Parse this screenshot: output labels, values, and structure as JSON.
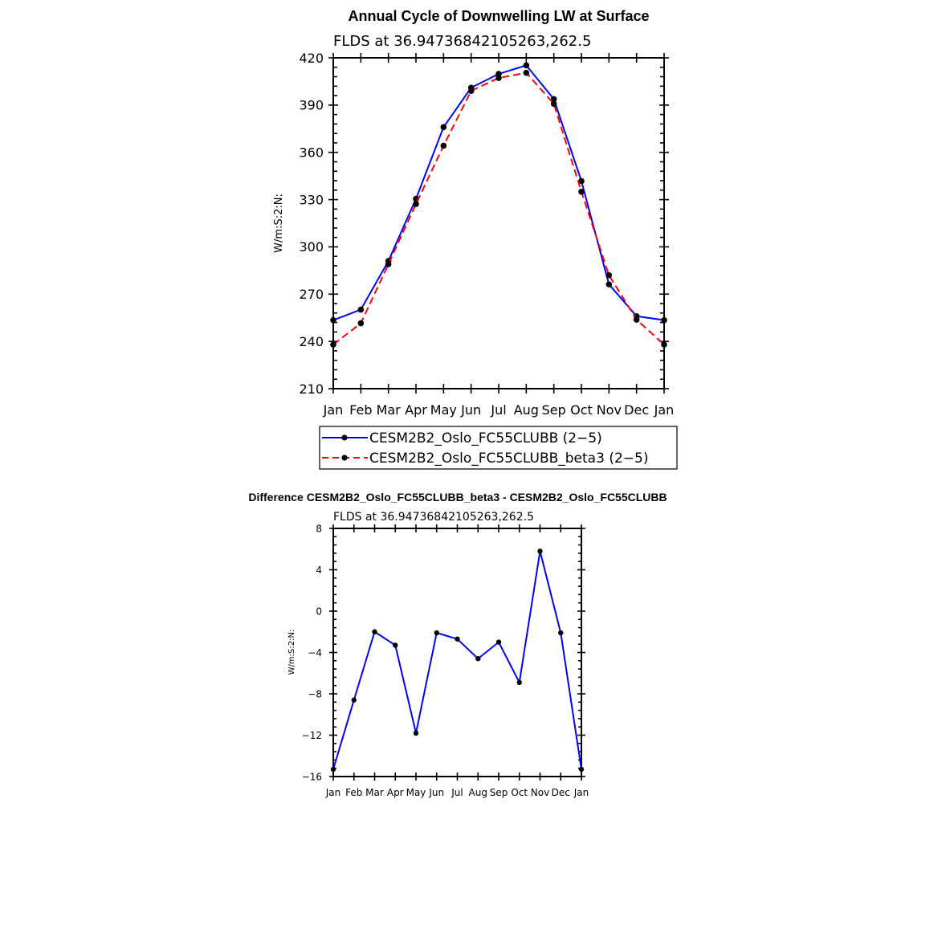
{
  "chart_data": [
    {
      "type": "line",
      "title": "Annual Cycle of Downwelling LW at Surface",
      "subtitle": "FLDS at 36.94736842105263,262.5",
      "ylabel": "W/m:S:2:N:",
      "xlabel": "",
      "categories": [
        "Jan",
        "Feb",
        "Mar",
        "Apr",
        "May",
        "Jun",
        "Jul",
        "Aug",
        "Sep",
        "Oct",
        "Nov",
        "Dec",
        "Jan"
      ],
      "ylim": [
        210,
        420
      ],
      "yticks": [
        210,
        240,
        270,
        300,
        330,
        360,
        390,
        420
      ],
      "grid": false,
      "legend_position": "bottom",
      "series": [
        {
          "name": "CESM2B2_Oslo_FC55CLUBB (2−5)",
          "color": "#0000ff",
          "dash": "solid",
          "values": [
            253.5,
            260.2,
            291.0,
            330.5,
            376.0,
            401.0,
            409.8,
            415.2,
            393.8,
            341.8,
            276.2,
            256.0,
            253.5
          ]
        },
        {
          "name": "CESM2B2_Oslo_FC55CLUBB_beta3 (2−5)",
          "color": "#ff0000",
          "dash": "dashed",
          "values": [
            238.0,
            251.5,
            289.0,
            327.2,
            364.2,
            399.0,
            407.2,
            410.5,
            390.8,
            335.0,
            282.0,
            253.8,
            238.0
          ]
        }
      ]
    },
    {
      "type": "line",
      "title": "Difference CESM2B2_Oslo_FC55CLUBB_beta3 - CESM2B2_Oslo_FC55CLUBB",
      "subtitle": "FLDS at 36.94736842105263,262.5",
      "ylabel": "W/m:S:2:N:",
      "xlabel": "",
      "categories": [
        "Jan",
        "Feb",
        "Mar",
        "Apr",
        "May",
        "Jun",
        "Jul",
        "Aug",
        "Sep",
        "Oct",
        "Nov",
        "Dec",
        "Jan"
      ],
      "ylim": [
        -16,
        8
      ],
      "yticks": [
        -16,
        -12,
        -8,
        -4,
        0,
        4,
        8
      ],
      "ytick_labels": [
        "−16",
        "−12",
        "−8",
        "−4",
        "0",
        "4",
        "8"
      ],
      "grid": false,
      "series": [
        {
          "color": "#0000ff",
          "dash": "solid",
          "values": [
            -15.3,
            -8.6,
            -2.0,
            -3.3,
            -11.8,
            -2.1,
            -2.7,
            -4.6,
            -3.0,
            -6.9,
            5.8,
            -2.1,
            -15.3
          ]
        }
      ]
    }
  ]
}
